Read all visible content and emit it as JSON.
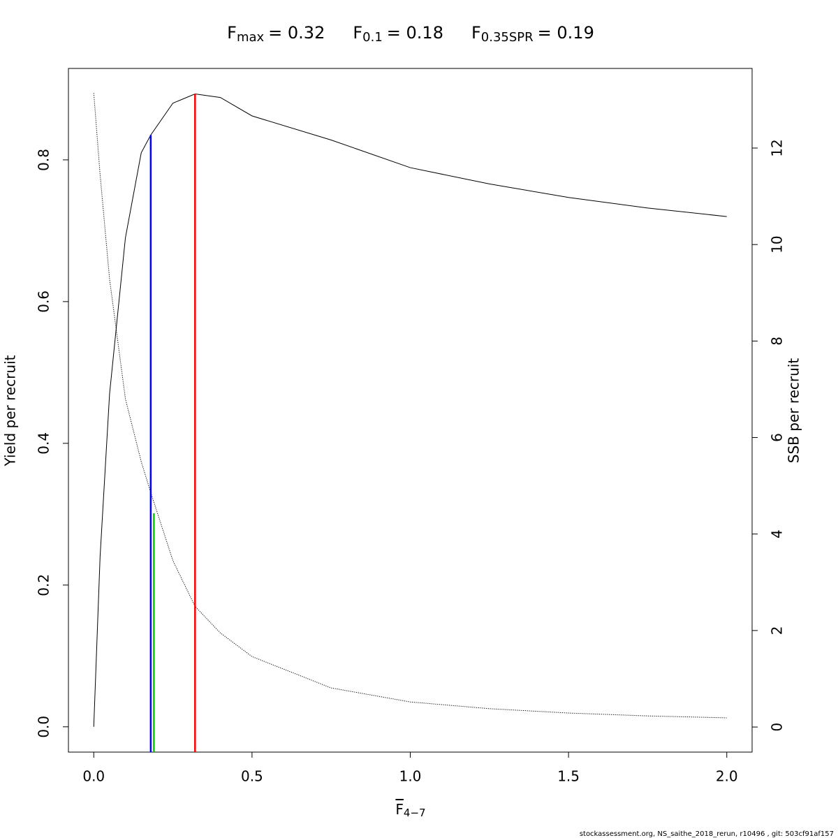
{
  "chart_data": {
    "type": "line",
    "reference_points": [
      {
        "name": "F",
        "sub": "max",
        "label": "= 0.32",
        "value": 0.32,
        "top": 0.893,
        "color": "#ff0000"
      },
      {
        "name": "F",
        "sub": "0.1",
        "label": "= 0.18",
        "value": 0.18,
        "top": 0.835,
        "color": "#0000ff"
      },
      {
        "name": "F",
        "sub": "0.35SPR",
        "label": "= 0.19",
        "value": 0.19,
        "top": 4.43,
        "axis": "y2",
        "color": "#00cc00"
      }
    ],
    "xlabel": {
      "main": "F",
      "sub": "4−7"
    },
    "ylabel": "Yield per recruit",
    "y2label": "SSB per recruit",
    "footer": "stockassessment.org, NS_saithe_2018_rerun, r10496 , git: 503cf91af157",
    "x": [
      0,
      0.02,
      0.05,
      0.1,
      0.15,
      0.18,
      0.25,
      0.32,
      0.4,
      0.5,
      0.75,
      1.0,
      1.25,
      1.5,
      1.75,
      2.0
    ],
    "series": [
      {
        "name": "Yield per recruit",
        "color": "#000000",
        "style": "solid",
        "values": [
          0,
          0.24,
          0.47,
          0.69,
          0.81,
          0.835,
          0.88,
          0.893,
          0.888,
          0.862,
          0.828,
          0.789,
          0.766,
          0.747,
          0.732,
          0.72
        ]
      },
      {
        "name": "SSB per recruit",
        "color": "#000000",
        "style": "dotted",
        "axis": "y2",
        "values": [
          13.14,
          11.45,
          9.28,
          6.8,
          5.5,
          4.86,
          3.45,
          2.5,
          1.95,
          1.46,
          0.81,
          0.52,
          0.38,
          0.29,
          0.23,
          0.19
        ]
      }
    ],
    "xlim": [
      -0.08,
      2.08
    ],
    "xticks": [
      {
        "value": 0,
        "label": "0.0"
      },
      0.5,
      {
        "value": 1,
        "label": "1.0"
      },
      1.5,
      {
        "value": 2,
        "label": "2.0"
      }
    ],
    "ylim": [
      -0.0357,
      0.929
    ],
    "yticks": [
      {
        "value": 0,
        "label": "0.0"
      },
      0.2,
      0.4,
      0.6,
      0.8
    ],
    "y2lim": [
      -0.52,
      13.65
    ],
    "y2ticks": [
      0,
      2,
      4,
      6,
      8,
      10,
      12
    ]
  }
}
